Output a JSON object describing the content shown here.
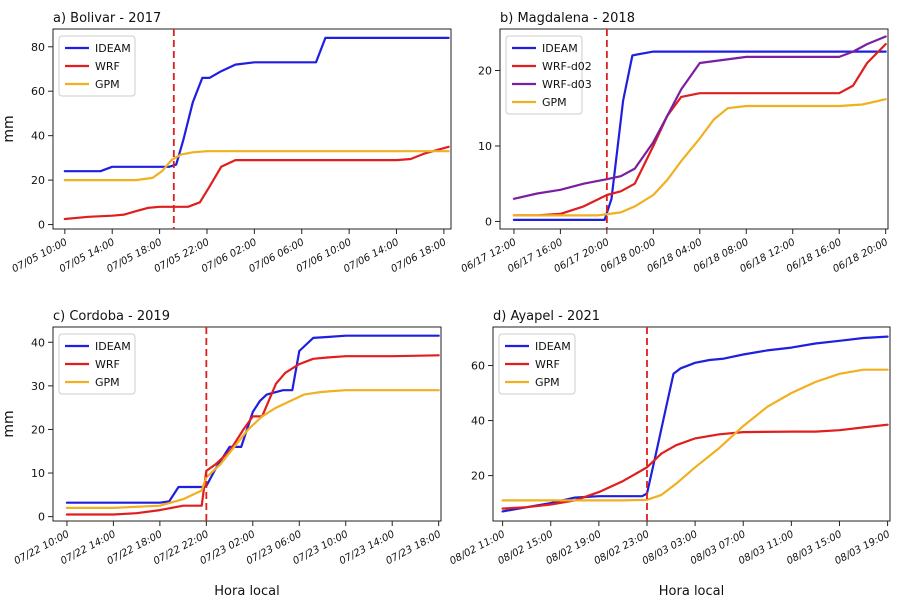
{
  "colors": {
    "IDEAM": "#1f1fe0",
    "WRF": "#e01e1e",
    "WRF-d02": "#e01e1e",
    "WRF-d03": "#7b1fa2",
    "GPM": "#f0b020",
    "marker": "#e01e1e"
  },
  "chart_data": [
    {
      "type": "line",
      "title": "a) Bolivar - 2017",
      "ylabel": "mm",
      "xlabel": "",
      "x_ticks": [
        "07/05 10:00",
        "07/05 14:00",
        "07/05 18:00",
        "07/05 22:00",
        "07/06 02:00",
        "07/06 06:00",
        "07/06 10:00",
        "07/06 14:00",
        "07/06 18:00"
      ],
      "yticks": [
        0,
        20,
        40,
        60,
        80
      ],
      "ylim": [
        -2,
        88
      ],
      "xlim": [
        -0.25,
        8.15
      ],
      "event_x": 2.3,
      "legend": [
        "IDEAM",
        "WRF",
        "GPM"
      ],
      "series": [
        {
          "name": "IDEAM",
          "x": [
            0,
            0.75,
            1,
            2.2,
            2.35,
            2.5,
            2.7,
            2.9,
            3.05,
            3.3,
            3.6,
            4,
            5.3,
            5.5,
            6,
            8.1
          ],
          "y": [
            24,
            24,
            26,
            26,
            27,
            38,
            55,
            66,
            66,
            69,
            72,
            73,
            73,
            84,
            84,
            84
          ]
        },
        {
          "name": "WRF",
          "x": [
            0,
            0.5,
            1,
            1.25,
            1.5,
            1.75,
            2,
            2.3,
            2.6,
            2.85,
            3.05,
            3.3,
            3.6,
            4,
            5,
            6,
            7,
            7.3,
            7.6,
            8.1
          ],
          "y": [
            2.5,
            3.5,
            4,
            4.5,
            6,
            7.5,
            8,
            8,
            8,
            10,
            17,
            26,
            29,
            29,
            29,
            29,
            29,
            29.5,
            32,
            35
          ]
        },
        {
          "name": "GPM",
          "x": [
            0,
            0.5,
            1,
            1.5,
            1.85,
            2.05,
            2.25,
            2.45,
            2.7,
            3,
            3.5,
            4,
            8.1
          ],
          "y": [
            20,
            20,
            20,
            20,
            21,
            24,
            29,
            31.5,
            32.5,
            33,
            33,
            33,
            33
          ]
        }
      ]
    },
    {
      "type": "line",
      "title": "b) Magdalena - 2018",
      "ylabel": "",
      "xlabel": "",
      "x_ticks": [
        "06/17 12:00",
        "06/17 16:00",
        "06/17 20:00",
        "06/18 00:00",
        "06/18 04:00",
        "06/18 08:00",
        "06/18 12:00",
        "06/18 16:00",
        "06/18 20:00"
      ],
      "yticks": [
        0,
        10,
        20
      ],
      "ylim": [
        -1,
        25.5
      ],
      "xlim": [
        -0.3,
        8.05
      ],
      "event_x": 2.0,
      "legend": [
        "IDEAM",
        "WRF-d02",
        "WRF-d03",
        "GPM"
      ],
      "series": [
        {
          "name": "IDEAM",
          "x": [
            0,
            1,
            1.95,
            2.1,
            2.35,
            2.55,
            3,
            4,
            5,
            6,
            7,
            8
          ],
          "y": [
            0.2,
            0.2,
            0.2,
            3,
            16,
            22,
            22.5,
            22.5,
            22.5,
            22.5,
            22.5,
            22.5
          ]
        },
        {
          "name": "WRF-d02",
          "x": [
            0,
            0.5,
            1,
            1.5,
            2,
            2.3,
            2.6,
            3,
            3.3,
            3.6,
            4,
            5,
            6,
            7,
            7.3,
            7.6,
            8
          ],
          "y": [
            0.8,
            0.8,
            1,
            2,
            3.5,
            4,
            5,
            10,
            14,
            16.5,
            17,
            17,
            17,
            17,
            18,
            21,
            23.5
          ]
        },
        {
          "name": "WRF-d03",
          "x": [
            0,
            0.5,
            1,
            1.5,
            2,
            2.3,
            2.6,
            3,
            3.3,
            3.6,
            4,
            5,
            6,
            7,
            7.3,
            7.6,
            8
          ],
          "y": [
            3,
            3.7,
            4.2,
            5,
            5.6,
            6,
            7,
            10.5,
            14,
            17.5,
            21,
            21.8,
            21.8,
            21.8,
            22.5,
            23.5,
            24.5
          ]
        },
        {
          "name": "GPM",
          "x": [
            0,
            1,
            1.8,
            2.3,
            2.6,
            3,
            3.3,
            3.6,
            4,
            4.3,
            4.6,
            5,
            6,
            7,
            7.5,
            8
          ],
          "y": [
            0.8,
            0.8,
            0.8,
            1.2,
            2,
            3.5,
            5.5,
            8,
            11,
            13.5,
            15,
            15.3,
            15.3,
            15.3,
            15.5,
            16.2
          ]
        }
      ]
    },
    {
      "type": "line",
      "title": "c) Cordoba - 2019",
      "ylabel": "mm",
      "xlabel": "Hora local",
      "x_ticks": [
        "07/22 10:00",
        "07/22 14:00",
        "07/22 18:00",
        "07/22 22:00",
        "07/23 02:00",
        "07/23 06:00",
        "07/23 10:00",
        "07/23 14:00",
        "07/23 18:00"
      ],
      "yticks": [
        0,
        10,
        20,
        30,
        40
      ],
      "ylim": [
        -1,
        43.5
      ],
      "xlim": [
        -0.3,
        8.05
      ],
      "event_x": 3.0,
      "legend": [
        "IDEAM",
        "WRF",
        "GPM"
      ],
      "series": [
        {
          "name": "IDEAM",
          "x": [
            0,
            1,
            2,
            2.2,
            2.4,
            2.9,
            3.0,
            3.2,
            3.5,
            3.75,
            4,
            4.15,
            4.3,
            4.65,
            4.85,
            5,
            5.3,
            5.6,
            6,
            7,
            8
          ],
          "y": [
            3.2,
            3.2,
            3.2,
            3.5,
            6.8,
            6.8,
            7,
            11,
            16,
            16,
            24,
            26.5,
            28,
            29,
            29,
            38,
            41,
            41.2,
            41.5,
            41.5,
            41.5
          ]
        },
        {
          "name": "WRF",
          "x": [
            0,
            1,
            1.5,
            2,
            2.5,
            2.9,
            3.0,
            3.2,
            3.5,
            3.8,
            4,
            4.2,
            4.5,
            4.7,
            5,
            5.3,
            5.6,
            6,
            7,
            8
          ],
          "y": [
            0.5,
            0.5,
            0.8,
            1.5,
            2.5,
            2.5,
            10.5,
            12,
            15,
            20,
            23,
            23,
            30.5,
            33,
            35,
            36.2,
            36.5,
            36.8,
            36.8,
            37
          ]
        },
        {
          "name": "GPM",
          "x": [
            0,
            1,
            2,
            2.5,
            2.9,
            3.0,
            3.3,
            3.6,
            3.9,
            4.2,
            4.5,
            4.8,
            5.1,
            5.4,
            5.7,
            6,
            7,
            8
          ],
          "y": [
            2,
            2,
            2.5,
            4,
            6,
            9,
            12,
            16,
            20,
            23,
            25,
            26.5,
            28,
            28.5,
            28.8,
            29,
            29,
            29
          ]
        }
      ]
    },
    {
      "type": "line",
      "title": "d) Ayapel - 2021",
      "ylabel": "",
      "xlabel": "Hora local",
      "x_ticks": [
        "08/02 11:00",
        "08/02 15:00",
        "08/02 19:00",
        "08/02 23:00",
        "08/03 03:00",
        "08/03 07:00",
        "08/03 11:00",
        "08/03 15:00",
        "08/03 19:00"
      ],
      "yticks": [
        20,
        40,
        60
      ],
      "ylim": [
        3.5,
        74
      ],
      "xlim": [
        -0.2,
        8.05
      ],
      "event_x": 3.0,
      "legend": [
        "IDEAM",
        "WRF",
        "GPM"
      ],
      "series": [
        {
          "name": "IDEAM",
          "x": [
            0,
            0.5,
            1,
            1.5,
            2,
            2.5,
            2.9,
            3.0,
            3.2,
            3.4,
            3.55,
            3.7,
            4,
            4.3,
            4.6,
            5,
            5.5,
            6,
            6.5,
            7,
            7.5,
            8
          ],
          "y": [
            7,
            8.5,
            10,
            12,
            12.5,
            12.5,
            12.5,
            13.5,
            29,
            45,
            57,
            59,
            61,
            62,
            62.5,
            64,
            65.5,
            66.5,
            68,
            69,
            70,
            70.5
          ]
        },
        {
          "name": "WRF",
          "x": [
            0,
            0.5,
            1,
            1.5,
            2,
            2.5,
            3,
            3.3,
            3.6,
            4,
            4.5,
            5,
            6,
            6.5,
            7,
            7.5,
            8
          ],
          "y": [
            8,
            8.5,
            9.5,
            11,
            14,
            18,
            23,
            28,
            31,
            33.5,
            35,
            35.8,
            36,
            36,
            36.5,
            37.5,
            38.5
          ]
        },
        {
          "name": "GPM",
          "x": [
            0,
            1,
            2,
            2.5,
            3,
            3.3,
            3.6,
            4,
            4.5,
            5,
            5.5,
            6,
            6.5,
            7,
            7.5,
            8
          ],
          "y": [
            11,
            11,
            11,
            11,
            11.2,
            13,
            17,
            23,
            30,
            38,
            45,
            50,
            54,
            57,
            58.5,
            58.5
          ]
        }
      ]
    }
  ]
}
